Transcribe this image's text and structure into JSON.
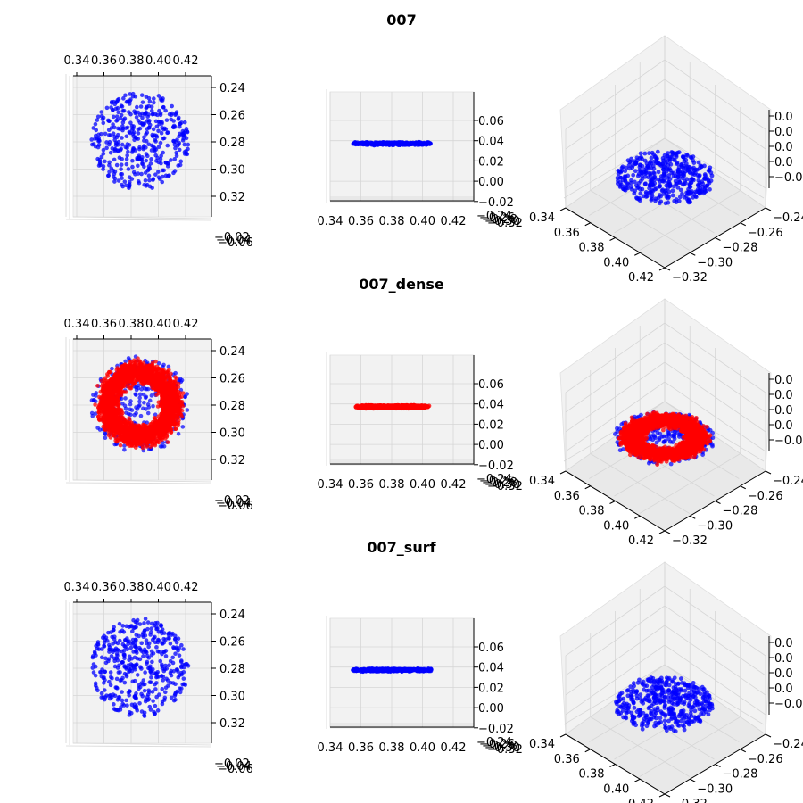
{
  "rows": [
    {
      "title": "007",
      "color": "#0000ff",
      "shape": "ring",
      "points": 420
    },
    {
      "title": "007_dense",
      "color": "#ff0000",
      "underlay_color": "#0000ff",
      "shape": "torus",
      "points": 2600
    },
    {
      "title": "007_surf",
      "color": "#0000ff",
      "shape": "ring",
      "points": 440
    }
  ],
  "views": {
    "top": {
      "x_ticks": [
        "0.34",
        "0.36",
        "0.38",
        "0.40",
        "0.42"
      ],
      "y_ticks": [
        "0.24",
        "0.26",
        "0.28",
        "0.30",
        "0.32"
      ],
      "z_ticks": [
        "0.02",
        "0.04",
        "0.06"
      ]
    },
    "side": {
      "x_ticks": [
        "0.34",
        "0.36",
        "0.38",
        "0.40",
        "0.42"
      ],
      "z_ticks": [
        "0.06",
        "0.04",
        "0.02",
        "0.00",
        "−0.02"
      ],
      "y_ticks": [
        "−0.24",
        "−0.26",
        "−0.28",
        "−0.30",
        "−0.32"
      ]
    },
    "iso": {
      "x_ticks": [
        "0.34",
        "0.36",
        "0.38",
        "0.40",
        "0.42"
      ],
      "y_ticks": [
        "−0.24",
        "−0.26",
        "−0.28",
        "−0.30",
        "−0.32"
      ],
      "z_ticks": [
        "0.0",
        "0.0",
        "0.0",
        "0.0",
        "−0.0"
      ]
    }
  },
  "chart_data": [
    {
      "type": "scatter",
      "title": "007",
      "series": [
        {
          "values_x_range": [
            0.355,
            0.425
          ],
          "values_y_range": [
            -0.325,
            -0.245
          ],
          "values_z": 0.035
        }
      ],
      "xlim": [
        0.34,
        0.43
      ],
      "ylim": [
        -0.33,
        -0.235
      ],
      "zlim": [
        -0.02,
        0.07
      ],
      "grid": true
    },
    {
      "type": "scatter",
      "title": "007_dense",
      "series": [
        {
          "values_x_range": [
            0.355,
            0.425
          ],
          "values_y_range": [
            -0.325,
            -0.245
          ],
          "values_z": 0.033
        },
        {
          "values_x_range": [
            0.355,
            0.425
          ],
          "values_y_range": [
            -0.325,
            -0.245
          ],
          "values_z": 0.033
        }
      ],
      "xlim": [
        0.34,
        0.43
      ],
      "ylim": [
        -0.33,
        -0.235
      ],
      "zlim": [
        -0.02,
        0.07
      ],
      "grid": true
    },
    {
      "type": "scatter",
      "title": "007_surf",
      "series": [
        {
          "values_x_range": [
            0.355,
            0.425
          ],
          "values_y_range": [
            -0.325,
            -0.245
          ],
          "values_z": 0.035
        }
      ],
      "xlim": [
        0.34,
        0.43
      ],
      "ylim": [
        -0.33,
        -0.235
      ],
      "zlim": [
        -0.02,
        0.07
      ],
      "grid": true
    }
  ]
}
